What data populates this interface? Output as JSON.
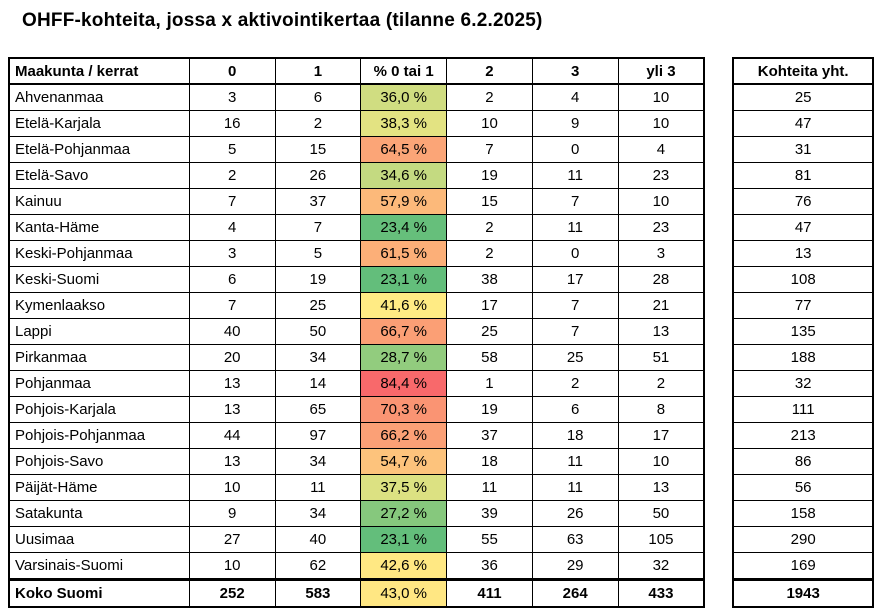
{
  "title": "OHFF-kohteita, jossa x aktivointikertaa (tilanne 6.2.2025)",
  "table": {
    "headers": [
      "Maakunta / kerrat",
      "0",
      "1",
      "% 0 tai 1",
      "2",
      "3",
      "yli 3"
    ],
    "rows": [
      {
        "name": "Ahvenanmaa",
        "c0": "3",
        "c1": "6",
        "pct": "36,0 %",
        "pct_color": "#D0DD81",
        "c2": "2",
        "c3": "4",
        "over3": "10",
        "total": "25"
      },
      {
        "name": "Etelä-Karjala",
        "c0": "16",
        "c1": "2",
        "pct": "38,3 %",
        "pct_color": "#E3E382",
        "c2": "10",
        "c3": "9",
        "over3": "10",
        "total": "47"
      },
      {
        "name": "Etelä-Pohjanmaa",
        "c0": "5",
        "c1": "15",
        "pct": "64,5 %",
        "pct_color": "#FBA577",
        "c2": "7",
        "c3": "0",
        "over3": "4",
        "total": "31"
      },
      {
        "name": "Etelä-Savo",
        "c0": "2",
        "c1": "26",
        "pct": "34,6 %",
        "pct_color": "#C4DA81",
        "c2": "19",
        "c3": "11",
        "over3": "23",
        "total": "81"
      },
      {
        "name": "Kainuu",
        "c0": "7",
        "c1": "37",
        "pct": "57,9 %",
        "pct_color": "#FCB97A",
        "c2": "15",
        "c3": "7",
        "over3": "10",
        "total": "76"
      },
      {
        "name": "Kanta-Häme",
        "c0": "4",
        "c1": "7",
        "pct": "23,4 %",
        "pct_color": "#66BF7B",
        "c2": "2",
        "c3": "11",
        "over3": "23",
        "total": "47"
      },
      {
        "name": "Keski-Pohjanmaa",
        "c0": "3",
        "c1": "5",
        "pct": "61,5 %",
        "pct_color": "#FCAF78",
        "c2": "2",
        "c3": "0",
        "over3": "3",
        "total": "13"
      },
      {
        "name": "Keski-Suomi",
        "c0": "6",
        "c1": "19",
        "pct": "23,1 %",
        "pct_color": "#63BE7B",
        "c2": "38",
        "c3": "17",
        "over3": "28",
        "total": "108"
      },
      {
        "name": "Kymenlaakso",
        "c0": "7",
        "c1": "25",
        "pct": "41,6 %",
        "pct_color": "#FFEB84",
        "c2": "17",
        "c3": "7",
        "over3": "21",
        "total": "77"
      },
      {
        "name": "Lappi",
        "c0": "40",
        "c1": "50",
        "pct": "66,7 %",
        "pct_color": "#FB9F75",
        "c2": "25",
        "c3": "7",
        "over3": "13",
        "total": "135"
      },
      {
        "name": "Pirkanmaa",
        "c0": "20",
        "c1": "34",
        "pct": "28,7 %",
        "pct_color": "#92CC7E",
        "c2": "58",
        "c3": "25",
        "over3": "51",
        "total": "188"
      },
      {
        "name": "Pohjanmaa",
        "c0": "13",
        "c1": "14",
        "pct": "84,4 %",
        "pct_color": "#F8696B",
        "c2": "1",
        "c3": "2",
        "over3": "2",
        "total": "32"
      },
      {
        "name": "Pohjois-Karjala",
        "c0": "13",
        "c1": "65",
        "pct": "70,3 %",
        "pct_color": "#FA9473",
        "c2": "19",
        "c3": "6",
        "over3": "8",
        "total": "111"
      },
      {
        "name": "Pohjois-Pohjanmaa",
        "c0": "44",
        "c1": "97",
        "pct": "66,2 %",
        "pct_color": "#FBA076",
        "c2": "37",
        "c3": "18",
        "over3": "17",
        "total": "213"
      },
      {
        "name": "Pohjois-Savo",
        "c0": "13",
        "c1": "34",
        "pct": "54,7 %",
        "pct_color": "#FDC37C",
        "c2": "18",
        "c3": "11",
        "over3": "10",
        "total": "86"
      },
      {
        "name": "Päijät-Häme",
        "c0": "10",
        "c1": "11",
        "pct": "37,5 %",
        "pct_color": "#DCE182",
        "c2": "11",
        "c3": "11",
        "over3": "13",
        "total": "56"
      },
      {
        "name": "Satakunta",
        "c0": "9",
        "c1": "34",
        "pct": "27,2 %",
        "pct_color": "#86C87D",
        "c2": "39",
        "c3": "26",
        "over3": "50",
        "total": "158"
      },
      {
        "name": "Uusimaa",
        "c0": "27",
        "c1": "40",
        "pct": "23,1 %",
        "pct_color": "#63BE7B",
        "c2": "55",
        "c3": "63",
        "over3": "105",
        "total": "290"
      },
      {
        "name": "Varsinais-Suomi",
        "c0": "10",
        "c1": "62",
        "pct": "42,6 %",
        "pct_color": "#FFE883",
        "c2": "36",
        "c3": "29",
        "over3": "32",
        "total": "169"
      }
    ],
    "total_row": {
      "name": "Koko Suomi",
      "c0": "252",
      "c1": "583",
      "pct": "43,0 %",
      "pct_color": "#FFE783",
      "c2": "411",
      "c3": "264",
      "over3": "433",
      "total": "1943"
    }
  },
  "side_table": {
    "header": "Kohteita yht."
  }
}
